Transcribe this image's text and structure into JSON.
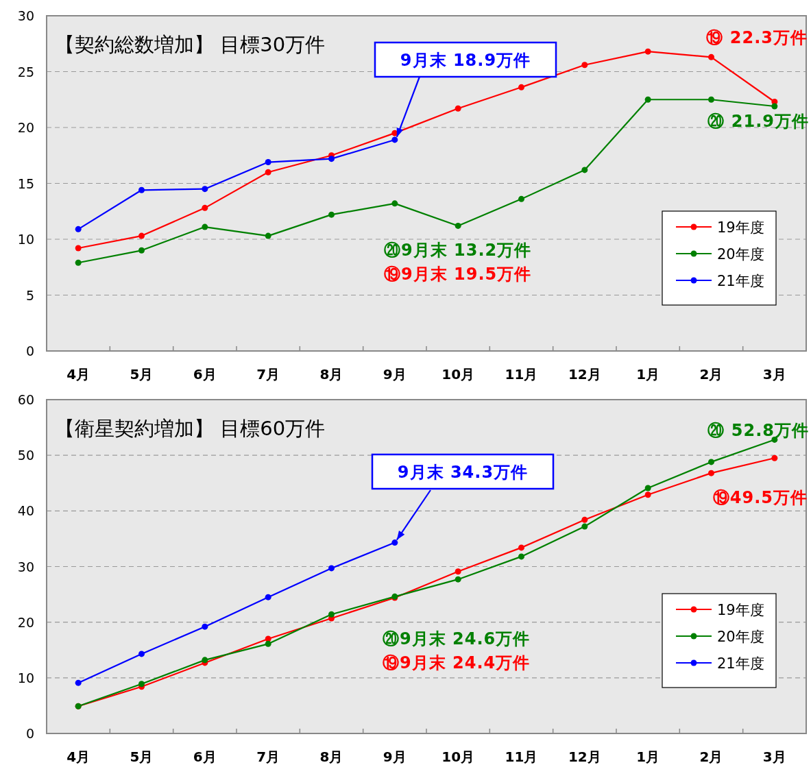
{
  "chart_data": [
    {
      "type": "line",
      "title": "【契約総数増加】 目標30万件",
      "categories": [
        "4月",
        "5月",
        "6月",
        "7月",
        "8月",
        "9月",
        "10月",
        "11月",
        "12月",
        "1月",
        "2月",
        "3月"
      ],
      "series": [
        {
          "name": "19年度",
          "color": "#ff0000",
          "values": [
            9.2,
            10.3,
            12.8,
            16.0,
            17.5,
            19.5,
            21.7,
            23.6,
            25.6,
            26.8,
            26.3,
            22.3
          ]
        },
        {
          "name": "20年度",
          "color": "#008000",
          "values": [
            7.9,
            9.0,
            11.1,
            10.3,
            12.2,
            13.2,
            11.2,
            13.6,
            16.2,
            22.5,
            22.5,
            21.9
          ]
        },
        {
          "name": "21年度",
          "color": "#0000ff",
          "values": [
            10.9,
            14.4,
            14.5,
            16.9,
            17.2,
            18.9,
            null,
            null,
            null,
            null,
            null,
            null
          ]
        }
      ],
      "ylim": [
        0,
        30
      ],
      "yticks": [
        0,
        5,
        10,
        15,
        20,
        25,
        30
      ],
      "grid": "y",
      "legend": "bottom right",
      "marker": "circle",
      "line_style": "solid",
      "annotations": [
        {
          "text": "9月末 18.9万件",
          "x": "9月",
          "y": 18.9
        },
        "⑳9月末 13.2万件",
        "⑲9月末 19.5万件",
        "⑲  22.3万件",
        "⑳  21.9万件"
      ]
    },
    {
      "type": "line",
      "title": "【衛星契約増加】 目標60万件",
      "categories": [
        "4月",
        "5月",
        "6月",
        "7月",
        "8月",
        "9月",
        "10月",
        "11月",
        "12月",
        "1月",
        "2月",
        "3月"
      ],
      "series": [
        {
          "name": "19年度",
          "color": "#ff0000",
          "values": [
            4.9,
            8.4,
            12.7,
            17.0,
            20.7,
            24.4,
            29.1,
            33.4,
            38.4,
            42.9,
            46.8,
            49.5
          ]
        },
        {
          "name": "20年度",
          "color": "#008000",
          "values": [
            4.9,
            8.9,
            13.2,
            16.1,
            21.4,
            24.6,
            27.7,
            31.8,
            37.2,
            44.1,
            48.8,
            52.8
          ]
        },
        {
          "name": "21年度",
          "color": "#0000ff",
          "values": [
            9.1,
            14.3,
            19.2,
            24.5,
            29.7,
            34.3,
            null,
            null,
            null,
            null,
            null,
            null
          ]
        }
      ],
      "ylim": [
        0,
        60
      ],
      "yticks": [
        0,
        10,
        20,
        30,
        40,
        50,
        60
      ],
      "grid": "y",
      "legend": "bottom right",
      "marker": "circle",
      "line_style": "solid",
      "annotations": [
        {
          "text": "9月末 34.3万件",
          "x": "9月",
          "y": 34.3
        },
        "⑳9月末 24.6万件",
        "⑲9月末 24.4万件",
        "⑳  52.8万件",
        "⑲49.5万件"
      ]
    }
  ]
}
